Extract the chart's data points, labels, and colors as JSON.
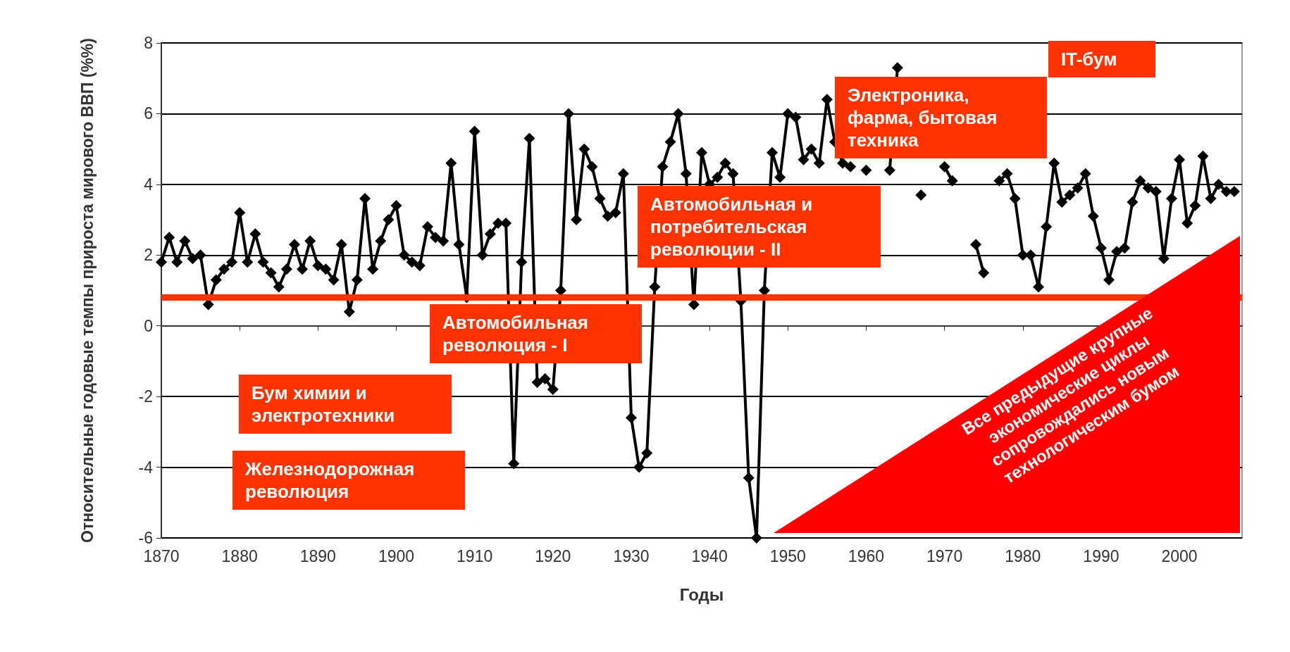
{
  "chart_data": {
    "type": "line",
    "xlabel": "Годы",
    "ylabel": "Относительные годовые темпы прироста мирового ВВП (%%)",
    "x": [
      1870,
      1871,
      1872,
      1873,
      1874,
      1875,
      1876,
      1877,
      1878,
      1879,
      1880,
      1881,
      1882,
      1883,
      1884,
      1885,
      1886,
      1887,
      1888,
      1889,
      1890,
      1891,
      1892,
      1893,
      1894,
      1895,
      1896,
      1897,
      1898,
      1899,
      1900,
      1901,
      1902,
      1903,
      1904,
      1905,
      1906,
      1907,
      1908,
      1909,
      1910,
      1911,
      1912,
      1913,
      1914,
      1915,
      1916,
      1917,
      1918,
      1919,
      1920,
      1921,
      1922,
      1923,
      1924,
      1925,
      1926,
      1927,
      1928,
      1929,
      1930,
      1931,
      1932,
      1933,
      1934,
      1935,
      1936,
      1937,
      1938,
      1939,
      1940,
      1941,
      1942,
      1943,
      1944,
      1945,
      1946,
      1947,
      1948,
      1949,
      1950,
      1951,
      1952,
      1953,
      1954,
      1955,
      1956,
      1957,
      1958,
      1959,
      1960,
      1961,
      1962,
      1963,
      1964,
      1965,
      1966,
      1967,
      1968,
      1969,
      1970,
      1971,
      1972,
      1973,
      1974,
      1975,
      1976,
      1977,
      1978,
      1979,
      1980,
      1981,
      1982,
      1983,
      1984,
      1985,
      1986,
      1987,
      1988,
      1989,
      1990,
      1991,
      1992,
      1993,
      1994,
      1995,
      1996,
      1997,
      1998,
      1999,
      2000,
      2001,
      2002,
      2003,
      2004,
      2005,
      2006,
      2007
    ],
    "series": [
      {
        "color": "#000000",
        "values": [
          1.8,
          2.5,
          1.8,
          2.4,
          1.9,
          2.0,
          0.6,
          1.3,
          1.6,
          1.8,
          3.2,
          1.8,
          2.6,
          1.8,
          1.5,
          1.1,
          1.6,
          2.3,
          1.6,
          2.4,
          1.7,
          1.6,
          1.3,
          2.3,
          0.4,
          1.3,
          3.6,
          1.6,
          2.4,
          3.0,
          3.4,
          2.0,
          1.8,
          1.7,
          2.8,
          2.5,
          2.4,
          4.6,
          2.3,
          0.8,
          5.5,
          2.0,
          2.6,
          2.9,
          2.9,
          -3.9,
          1.8,
          5.3,
          -1.6,
          -1.5,
          -1.8,
          1.0,
          6.0,
          3.0,
          5.0,
          4.5,
          3.6,
          3.1,
          3.2,
          4.3,
          -2.6,
          -4.0,
          -3.6,
          1.1,
          4.5,
          5.2,
          6.0,
          4.3,
          0.6,
          4.9,
          4.0,
          4.2,
          4.6,
          4.3,
          0.7,
          -4.3,
          -6.0,
          1.0,
          4.9,
          4.2,
          6.0,
          5.9,
          4.7,
          5.0,
          4.6,
          6.4,
          5.2,
          4.6,
          4.5,
          null,
          4.4,
          null,
          null,
          4.4,
          7.3,
          null,
          null,
          3.7,
          null,
          null,
          4.5,
          4.1,
          null,
          null,
          2.3,
          1.5,
          null,
          4.1,
          4.3,
          3.6,
          2.0,
          2.0,
          1.1,
          2.8,
          4.6,
          3.5,
          3.7,
          3.9,
          4.3,
          3.1,
          2.2,
          1.3,
          2.1,
          2.2,
          3.5,
          4.1,
          3.9,
          3.8,
          1.9,
          3.6,
          4.7,
          2.9,
          3.4,
          4.8,
          3.6,
          4.0,
          3.8,
          3.8
        ]
      }
    ],
    "xlim": [
      1870,
      2008
    ],
    "xticks": [
      1870,
      1880,
      1890,
      1900,
      1910,
      1920,
      1930,
      1940,
      1950,
      1960,
      1970,
      1980,
      1990,
      2000
    ],
    "ylim": [
      -6,
      8
    ],
    "yticks": [
      -6,
      -4,
      -2,
      0,
      2,
      4,
      6,
      8
    ],
    "grid": "y",
    "marker": "diamond",
    "line_style": "solid",
    "ref_lines": [
      {
        "axis": "y",
        "value": 0.8,
        "color": "#ff3300"
      }
    ],
    "annotations": [
      "IT-бум",
      "Электроника, фарма, бытовая техника",
      "Автомобильная и потребительская революции - II",
      "Автомобильная революция - I",
      "Бум химии и электротехники",
      "Железнодорожная революция",
      "Все предыдущие крупные экономические циклы сопровождались новым технологическим бумом"
    ]
  }
}
